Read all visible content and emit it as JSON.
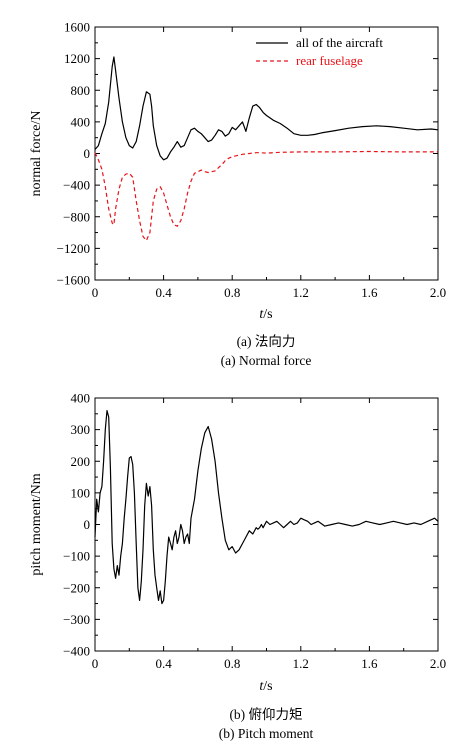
{
  "chart_data": [
    {
      "type": "line",
      "xlabel_italic": "t",
      "xlabel_unit": "/s",
      "ylabel": "normal force/N",
      "xlim": [
        0,
        2.0
      ],
      "ylim": [
        -1600,
        1600
      ],
      "xticks": [
        "0",
        "0.4",
        "0.8",
        "1.2",
        "1.6",
        "2.0"
      ],
      "xtick_values": [
        0,
        0.4,
        0.8,
        1.2,
        1.6,
        2.0
      ],
      "yticks": [
        "1600",
        "1200",
        "800",
        "400",
        "0",
        "−400",
        "−800",
        "−1200",
        "−1600"
      ],
      "ytick_values": [
        1600,
        1200,
        800,
        400,
        0,
        -400,
        -800,
        -1200,
        -1600
      ],
      "legend_position": "top-right",
      "caption_cn": "(a) 法向力",
      "caption_en": "(a) Normal force",
      "series": [
        {
          "name": "all of the aircraft",
          "color": "#000000",
          "style": "solid",
          "x": [
            0,
            0.02,
            0.04,
            0.06,
            0.08,
            0.1,
            0.11,
            0.12,
            0.14,
            0.16,
            0.18,
            0.2,
            0.22,
            0.24,
            0.26,
            0.28,
            0.3,
            0.32,
            0.33,
            0.34,
            0.36,
            0.38,
            0.4,
            0.42,
            0.44,
            0.46,
            0.48,
            0.5,
            0.52,
            0.54,
            0.56,
            0.58,
            0.6,
            0.62,
            0.64,
            0.66,
            0.68,
            0.7,
            0.72,
            0.74,
            0.76,
            0.78,
            0.8,
            0.82,
            0.84,
            0.86,
            0.88,
            0.9,
            0.92,
            0.94,
            0.96,
            0.98,
            1.0,
            1.04,
            1.08,
            1.12,
            1.16,
            1.2,
            1.24,
            1.28,
            1.32,
            1.4,
            1.48,
            1.56,
            1.64,
            1.72,
            1.8,
            1.88,
            1.96,
            2.0
          ],
          "y": [
            50,
            100,
            250,
            380,
            650,
            1100,
            1220,
            1050,
            700,
            400,
            200,
            100,
            70,
            150,
            350,
            600,
            780,
            750,
            600,
            350,
            100,
            -30,
            -80,
            -60,
            20,
            80,
            150,
            80,
            100,
            200,
            300,
            320,
            280,
            250,
            200,
            150,
            170,
            230,
            300,
            280,
            220,
            250,
            330,
            300,
            350,
            400,
            280,
            450,
            600,
            620,
            580,
            520,
            480,
            420,
            380,
            320,
            250,
            230,
            230,
            240,
            260,
            290,
            320,
            340,
            350,
            340,
            320,
            300,
            310,
            300
          ]
        },
        {
          "name": "rear fuselage",
          "color": "#e8141a",
          "style": "dashed",
          "x": [
            0,
            0.02,
            0.04,
            0.06,
            0.08,
            0.1,
            0.11,
            0.12,
            0.14,
            0.16,
            0.18,
            0.2,
            0.22,
            0.24,
            0.26,
            0.28,
            0.3,
            0.32,
            0.33,
            0.34,
            0.36,
            0.38,
            0.4,
            0.42,
            0.44,
            0.46,
            0.48,
            0.5,
            0.52,
            0.54,
            0.56,
            0.58,
            0.6,
            0.62,
            0.64,
            0.66,
            0.68,
            0.7,
            0.72,
            0.74,
            0.76,
            0.78,
            0.8,
            0.82,
            0.84,
            0.86,
            0.88,
            0.9,
            0.92,
            0.94,
            0.96,
            1.0,
            1.04,
            1.08,
            1.2,
            1.4,
            1.6,
            1.8,
            2.0
          ],
          "y": [
            10,
            -80,
            -200,
            -420,
            -700,
            -880,
            -900,
            -700,
            -450,
            -300,
            -260,
            -250,
            -300,
            -600,
            -850,
            -1050,
            -1100,
            -1000,
            -800,
            -600,
            -450,
            -420,
            -500,
            -650,
            -800,
            -900,
            -920,
            -850,
            -700,
            -500,
            -350,
            -250,
            -230,
            -210,
            -230,
            -240,
            -230,
            -220,
            -180,
            -140,
            -90,
            -60,
            -40,
            -30,
            -20,
            -10,
            -5,
            0,
            5,
            10,
            10,
            5,
            10,
            15,
            20,
            20,
            25,
            20,
            20
          ]
        }
      ]
    },
    {
      "type": "line",
      "xlabel_italic": "t",
      "xlabel_unit": "/s",
      "ylabel": "pitch moment/Nm",
      "xlim": [
        0,
        2.0
      ],
      "ylim": [
        -400,
        400
      ],
      "xticks": [
        "0",
        "0.4",
        "0.8",
        "1.2",
        "1.6",
        "2.0"
      ],
      "xtick_values": [
        0,
        0.4,
        0.8,
        1.2,
        1.6,
        2.0
      ],
      "yticks": [
        "400",
        "300",
        "200",
        "100",
        "0",
        "−100",
        "−200",
        "−300",
        "−400"
      ],
      "ytick_values": [
        400,
        300,
        200,
        100,
        0,
        -100,
        -200,
        -300,
        -400
      ],
      "caption_cn": "(b) 俯仰力矩",
      "caption_en": "(b) Pitch moment",
      "series": [
        {
          "color": "#000000",
          "style": "solid",
          "x": [
            0,
            0.01,
            0.02,
            0.03,
            0.04,
            0.05,
            0.06,
            0.07,
            0.08,
            0.09,
            0.1,
            0.11,
            0.12,
            0.13,
            0.14,
            0.15,
            0.16,
            0.17,
            0.18,
            0.19,
            0.2,
            0.21,
            0.22,
            0.23,
            0.24,
            0.25,
            0.26,
            0.27,
            0.28,
            0.29,
            0.3,
            0.31,
            0.32,
            0.33,
            0.34,
            0.35,
            0.36,
            0.37,
            0.38,
            0.39,
            0.4,
            0.41,
            0.42,
            0.43,
            0.44,
            0.45,
            0.46,
            0.47,
            0.48,
            0.49,
            0.5,
            0.51,
            0.52,
            0.53,
            0.54,
            0.55,
            0.56,
            0.58,
            0.6,
            0.62,
            0.64,
            0.66,
            0.68,
            0.7,
            0.72,
            0.74,
            0.76,
            0.78,
            0.8,
            0.82,
            0.84,
            0.86,
            0.88,
            0.9,
            0.92,
            0.94,
            0.95,
            0.96,
            0.97,
            0.98,
            1.0,
            1.02,
            1.04,
            1.06,
            1.08,
            1.1,
            1.12,
            1.14,
            1.16,
            1.18,
            1.2,
            1.22,
            1.24,
            1.26,
            1.28,
            1.3,
            1.34,
            1.38,
            1.42,
            1.46,
            1.5,
            1.54,
            1.58,
            1.62,
            1.66,
            1.7,
            1.74,
            1.78,
            1.82,
            1.86,
            1.9,
            1.94,
            1.98,
            2.0
          ],
          "y": [
            -40,
            80,
            40,
            100,
            120,
            200,
            300,
            360,
            340,
            180,
            -60,
            -140,
            -170,
            -130,
            -160,
            -100,
            -60,
            20,
            80,
            150,
            210,
            215,
            190,
            100,
            -60,
            -200,
            -240,
            -180,
            -80,
            60,
            130,
            90,
            120,
            60,
            -80,
            -160,
            -200,
            -240,
            -210,
            -250,
            -240,
            -180,
            -100,
            -40,
            -60,
            -80,
            -40,
            -20,
            -60,
            -40,
            0,
            -20,
            -60,
            -40,
            -30,
            -60,
            20,
            80,
            170,
            240,
            290,
            310,
            270,
            200,
            100,
            20,
            -50,
            -80,
            -70,
            -90,
            -80,
            -60,
            -40,
            -20,
            -30,
            -10,
            -15,
            -10,
            0,
            -10,
            10,
            0,
            5,
            10,
            0,
            -10,
            0,
            10,
            0,
            5,
            20,
            15,
            10,
            0,
            5,
            10,
            -5,
            0,
            5,
            0,
            -5,
            0,
            10,
            5,
            0,
            5,
            10,
            5,
            0,
            5,
            0,
            10,
            20,
            10
          ]
        }
      ]
    }
  ]
}
